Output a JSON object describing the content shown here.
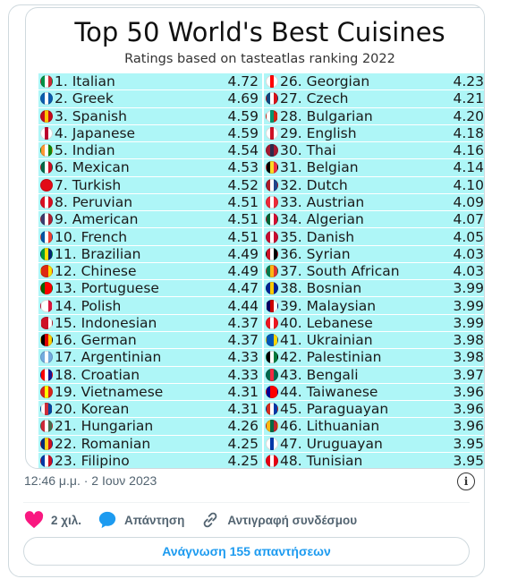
{
  "image": {
    "title": "Top 50 World's Best Cuisines",
    "subtitle": "Ratings based on tasteatlas ranking 2022",
    "left_column": [
      {
        "label": "1. Italian",
        "score": "4.72",
        "flag": [
          "#009246",
          "#ffffff",
          "#ce2b37"
        ]
      },
      {
        "label": "2. Greek",
        "score": "4.69",
        "flag": [
          "#0d5eaf",
          "#ffffff",
          "#0d5eaf"
        ]
      },
      {
        "label": "3. Spanish",
        "score": "4.59",
        "flag": [
          "#c60b1e",
          "#ffc400",
          "#c60b1e"
        ]
      },
      {
        "label": "4. Japanese",
        "score": "4.59",
        "flag": [
          "#ffffff",
          "#bc002d",
          "#ffffff"
        ]
      },
      {
        "label": "5. Indian",
        "score": "4.54",
        "flag": [
          "#ff9933",
          "#ffffff",
          "#138808"
        ]
      },
      {
        "label": "6. Mexican",
        "score": "4.53",
        "flag": [
          "#006847",
          "#ffffff",
          "#ce1126"
        ]
      },
      {
        "label": "7. Turkish",
        "score": "4.52",
        "flag": [
          "#e30a17",
          "#e30a17",
          "#e30a17"
        ]
      },
      {
        "label": "8. Peruvian",
        "score": "4.51",
        "flag": [
          "#d91023",
          "#ffffff",
          "#d91023"
        ]
      },
      {
        "label": "9. American",
        "score": "4.51",
        "flag": [
          "#3c3b6e",
          "#ffffff",
          "#b22234"
        ]
      },
      {
        "label": "10. French",
        "score": "4.51",
        "flag": [
          "#0055a4",
          "#ffffff",
          "#ef4135"
        ]
      },
      {
        "label": "11. Brazilian",
        "score": "4.49",
        "flag": [
          "#009c3b",
          "#ffdf00",
          "#002776"
        ]
      },
      {
        "label": "12. Chinese",
        "score": "4.49",
        "flag": [
          "#de2910",
          "#de2910",
          "#ffde00"
        ]
      },
      {
        "label": "13. Portuguese",
        "score": "4.47",
        "flag": [
          "#006600",
          "#ff0000",
          "#ff0000"
        ]
      },
      {
        "label": "14. Polish",
        "score": "4.44",
        "flag": [
          "#ffffff",
          "#ffffff",
          "#dc143c"
        ]
      },
      {
        "label": "15. Indonesian",
        "score": "4.37",
        "flag": [
          "#ce1126",
          "#ce1126",
          "#ffffff"
        ]
      },
      {
        "label": "16. German",
        "score": "4.37",
        "flag": [
          "#000000",
          "#dd0000",
          "#ffce00"
        ]
      },
      {
        "label": "17. Argentinian",
        "score": "4.33",
        "flag": [
          "#74acdf",
          "#ffffff",
          "#74acdf"
        ]
      },
      {
        "label": "18. Croatian",
        "score": "4.33",
        "flag": [
          "#ff0000",
          "#ffffff",
          "#171796"
        ]
      },
      {
        "label": "19. Vietnamese",
        "score": "4.31",
        "flag": [
          "#da251d",
          "#ffff00",
          "#da251d"
        ]
      },
      {
        "label": "20. Korean",
        "score": "4.31",
        "flag": [
          "#ffffff",
          "#cd2e3a",
          "#0047a0"
        ]
      },
      {
        "label": "21. Hungarian",
        "score": "4.26",
        "flag": [
          "#ce2939",
          "#ffffff",
          "#477050"
        ]
      },
      {
        "label": "22. Romanian",
        "score": "4.25",
        "flag": [
          "#002b7f",
          "#fcd116",
          "#ce1126"
        ]
      },
      {
        "label": "23. Filipino",
        "score": "4.25",
        "flag": [
          "#0038a8",
          "#ffffff",
          "#ce1126"
        ]
      }
    ],
    "right_column": [
      {
        "label": "26. Georgian",
        "score": "4.23",
        "flag": [
          "#ffffff",
          "#ff0000",
          "#ffffff"
        ]
      },
      {
        "label": "27. Czech",
        "score": "4.21",
        "flag": [
          "#11457e",
          "#ffffff",
          "#d7141a"
        ]
      },
      {
        "label": "28. Bulgarian",
        "score": "4.20",
        "flag": [
          "#ffffff",
          "#00966e",
          "#d62612"
        ]
      },
      {
        "label": "29. English",
        "score": "4.18",
        "flag": [
          "#ffffff",
          "#ce1124",
          "#ffffff"
        ]
      },
      {
        "label": "30. Thai",
        "score": "4.16",
        "flag": [
          "#a51931",
          "#2d2a4a",
          "#a51931"
        ]
      },
      {
        "label": "31. Belgian",
        "score": "4.14",
        "flag": [
          "#000000",
          "#fdda24",
          "#ef3340"
        ]
      },
      {
        "label": "32. Dutch",
        "score": "4.10",
        "flag": [
          "#ae1c28",
          "#ffffff",
          "#21468b"
        ]
      },
      {
        "label": "33. Austrian",
        "score": "4.09",
        "flag": [
          "#ed2939",
          "#ffffff",
          "#ed2939"
        ]
      },
      {
        "label": "34. Algerian",
        "score": "4.07",
        "flag": [
          "#006233",
          "#ffffff",
          "#d21034"
        ]
      },
      {
        "label": "35. Danish",
        "score": "4.05",
        "flag": [
          "#c60c30",
          "#ffffff",
          "#c60c30"
        ]
      },
      {
        "label": "36. Syrian",
        "score": "4.03",
        "flag": [
          "#ce1126",
          "#ffffff",
          "#000000"
        ]
      },
      {
        "label": "37. South African",
        "score": "4.03",
        "flag": [
          "#007a4d",
          "#ffb612",
          "#de3831"
        ]
      },
      {
        "label": "38. Bosnian",
        "score": "3.99",
        "flag": [
          "#002395",
          "#fecb00",
          "#002395"
        ]
      },
      {
        "label": "39. Malaysian",
        "score": "3.99",
        "flag": [
          "#010066",
          "#cc0001",
          "#ffffff"
        ]
      },
      {
        "label": "40. Lebanese",
        "score": "3.99",
        "flag": [
          "#ee161f",
          "#ffffff",
          "#ee161f"
        ]
      },
      {
        "label": "41. Ukrainian",
        "score": "3.98",
        "flag": [
          "#0057b7",
          "#0057b7",
          "#ffd700"
        ]
      },
      {
        "label": "42. Palestinian",
        "score": "3.98",
        "flag": [
          "#000000",
          "#ffffff",
          "#007a3d"
        ]
      },
      {
        "label": "43. Bengali",
        "score": "3.97",
        "flag": [
          "#006a4e",
          "#f42a41",
          "#006a4e"
        ]
      },
      {
        "label": "44. Taiwanese",
        "score": "3.96",
        "flag": [
          "#000095",
          "#fe0000",
          "#fe0000"
        ]
      },
      {
        "label": "45. Paraguayan",
        "score": "3.96",
        "flag": [
          "#d52b1e",
          "#ffffff",
          "#0038a8"
        ]
      },
      {
        "label": "46. Lithuanian",
        "score": "3.96",
        "flag": [
          "#fdb913",
          "#006a44",
          "#c1272d"
        ]
      },
      {
        "label": "47. Uruguayan",
        "score": "3.95",
        "flag": [
          "#ffffff",
          "#0038a8",
          "#ffffff"
        ]
      },
      {
        "label": "48. Tunisian",
        "score": "3.95",
        "flag": [
          "#e70013",
          "#ffffff",
          "#e70013"
        ]
      }
    ]
  },
  "tweet": {
    "timestamp": "12:46 μ.μ. · 2 Ιουν 2023",
    "info_icon": "i",
    "like_count": "2 χιλ.",
    "reply_label": "Απάντηση",
    "copy_link_label": "Αντιγραφή συνδέσμου",
    "read_replies_label": "Ανάγνωση 155 απαντήσεων",
    "like_color": "#f91880",
    "reply_color": "#1d9bf0",
    "link_color": "#1d9bf0"
  }
}
